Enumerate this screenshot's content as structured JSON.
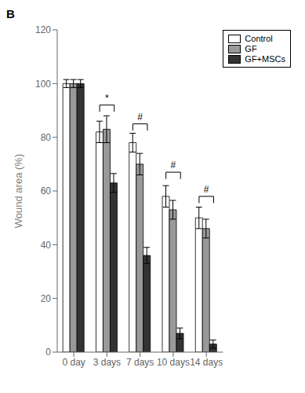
{
  "chart_data": {
    "type": "bar",
    "title": "B",
    "ylabel": "Wound area (%)",
    "categories": [
      "0 day",
      "3 days",
      "7 days",
      "10 days",
      "14 days"
    ],
    "series": [
      {
        "name": "Control",
        "color": "#ffffff",
        "values": [
          100,
          82,
          78,
          58,
          50
        ],
        "errors": [
          1.5,
          4.0,
          3.5,
          4.0,
          4.0
        ]
      },
      {
        "name": "GF",
        "color": "#999999",
        "values": [
          100,
          83,
          70,
          53,
          46
        ],
        "errors": [
          1.5,
          5.0,
          4.0,
          3.5,
          3.5
        ]
      },
      {
        "name": "GF+MSCs",
        "color": "#333333",
        "values": [
          100,
          63,
          36,
          7,
          3
        ],
        "errors": [
          1.5,
          3.5,
          3.0,
          2.0,
          1.5
        ]
      }
    ],
    "ylim": [
      0,
      120
    ],
    "yticks": [
      0,
      20,
      40,
      60,
      80,
      100,
      120
    ],
    "grid": false,
    "legend": "upper right",
    "annotations": [
      {
        "category": "3 days",
        "from": "Control",
        "to": "GF+MSCs",
        "y": 92,
        "label": "*"
      },
      {
        "category": "7 days",
        "from": "Control",
        "to": "GF+MSCs",
        "y": 85,
        "label": "#"
      },
      {
        "category": "10 days",
        "from": "Control",
        "to": "GF+MSCs",
        "y": 67,
        "label": "#"
      },
      {
        "category": "14 days",
        "from": "Control",
        "to": "GF+MSCs",
        "y": 58,
        "label": "#"
      }
    ]
  }
}
